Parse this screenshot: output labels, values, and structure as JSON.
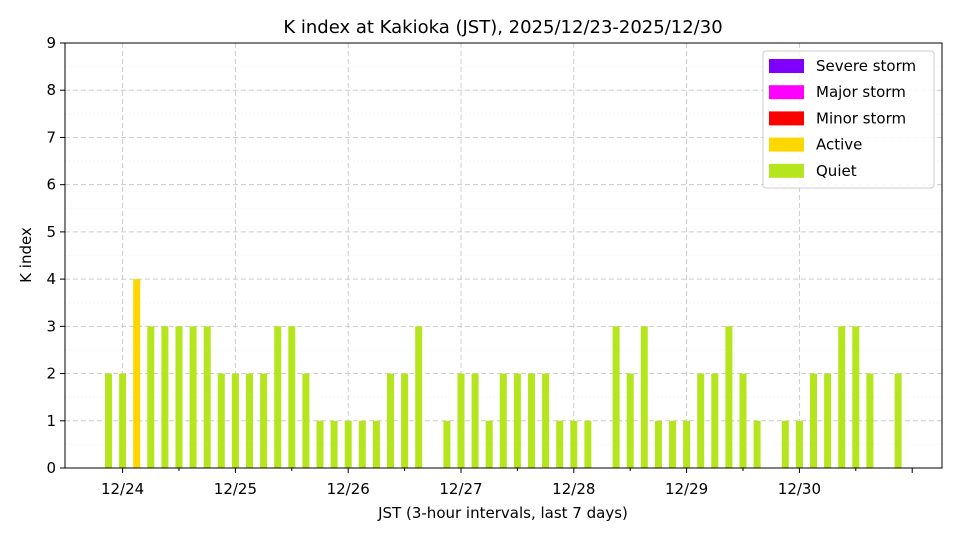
{
  "chart_data": {
    "type": "bar",
    "title": "K index at Kakioka (JST), 2025/12/23-2025/12/30",
    "xlabel": "JST (3-hour intervals, last 7 days)",
    "ylabel": "K index",
    "ylim": [
      0,
      9
    ],
    "yticks": [
      "0",
      "1",
      "2",
      "3",
      "4",
      "5",
      "6",
      "7",
      "8",
      "9"
    ],
    "xticks": [
      "12/24",
      "12/25",
      "12/26",
      "12/27",
      "12/28",
      "12/29",
      "12/30"
    ],
    "grid": true,
    "legend_position": "top-right",
    "categories": [
      "12/23 18:00",
      "12/23 21:00",
      "12/24 00:00",
      "12/24 03:00",
      "12/24 06:00",
      "12/24 09:00",
      "12/24 12:00",
      "12/24 15:00",
      "12/24 18:00",
      "12/24 21:00",
      "12/25 00:00",
      "12/25 03:00",
      "12/25 06:00",
      "12/25 09:00",
      "12/25 12:00",
      "12/25 15:00",
      "12/25 18:00",
      "12/25 21:00",
      "12/26 00:00",
      "12/26 03:00",
      "12/26 06:00",
      "12/26 09:00",
      "12/26 12:00",
      "12/26 15:00",
      "12/26 18:00",
      "12/26 21:00",
      "12/27 00:00",
      "12/27 03:00",
      "12/27 06:00",
      "12/27 09:00",
      "12/27 12:00",
      "12/27 15:00",
      "12/27 18:00",
      "12/27 21:00",
      "12/28 00:00",
      "12/28 03:00",
      "12/28 06:00",
      "12/28 09:00",
      "12/28 12:00",
      "12/28 15:00",
      "12/28 18:00",
      "12/28 21:00",
      "12/29 00:00",
      "12/29 03:00",
      "12/29 06:00",
      "12/29 09:00",
      "12/29 12:00",
      "12/29 15:00",
      "12/29 18:00",
      "12/29 21:00",
      "12/30 00:00",
      "12/30 03:00",
      "12/30 06:00",
      "12/30 09:00",
      "12/30 12:00",
      "12/30 15:00",
      "12/30 18:00"
    ],
    "values": [
      2,
      2,
      4,
      3,
      3,
      3,
      3,
      3,
      2,
      2,
      2,
      2,
      3,
      3,
      2,
      1,
      1,
      1,
      1,
      1,
      2,
      2,
      3,
      0,
      1,
      2,
      2,
      1,
      2,
      2,
      2,
      2,
      1,
      1,
      1,
      0,
      3,
      2,
      3,
      1,
      1,
      1,
      2,
      2,
      3,
      2,
      1,
      0,
      1,
      1,
      2,
      2,
      3,
      3,
      2,
      0,
      2
    ],
    "level_colors": {
      "Severe storm": "#7f00ff",
      "Major storm": "#ff00ff",
      "Minor storm": "#ff0000",
      "Active": "#ffd700",
      "Quiet": "#b5e61d"
    },
    "legend": [
      "Severe storm",
      "Major storm",
      "Minor storm",
      "Active",
      "Quiet"
    ]
  }
}
